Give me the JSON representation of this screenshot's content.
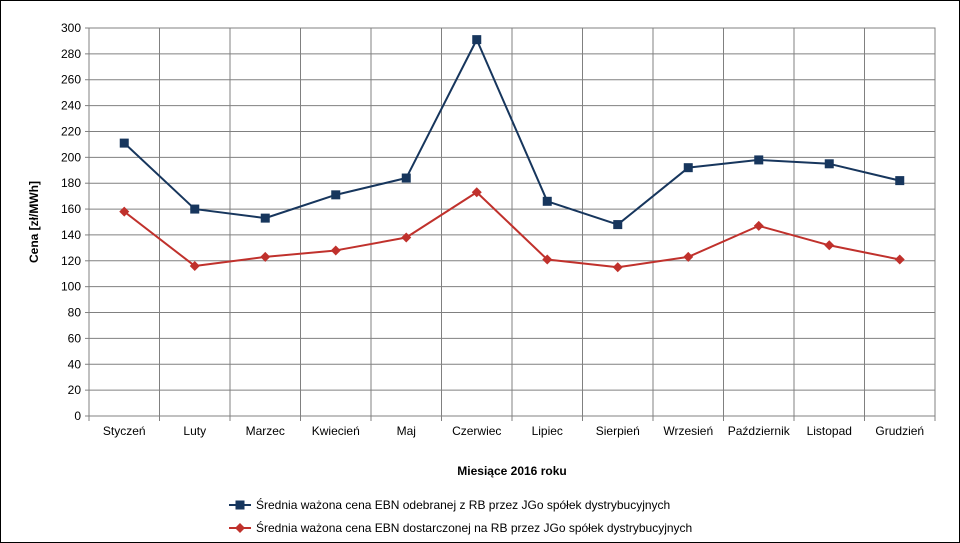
{
  "chart_data": {
    "type": "line",
    "title": "",
    "xlabel": "Miesiące 2016  roku",
    "ylabel": "Cena [zł/MWh]",
    "ylim": [
      0,
      300
    ],
    "y_ticks": [
      0,
      20,
      40,
      60,
      80,
      100,
      120,
      140,
      160,
      180,
      200,
      220,
      240,
      260,
      280,
      300
    ],
    "categories": [
      "Styczeń",
      "Luty",
      "Marzec",
      "Kwiecień",
      "Maj",
      "Czerwiec",
      "Lipiec",
      "Sierpień",
      "Wrzesień",
      "Październik",
      "Listopad",
      "Grudzień"
    ],
    "grid": true,
    "legend_position": "bottom",
    "series": [
      {
        "name": "Średnia ważona cena EBN odebranej z RB przez JGo spółek dystrybucyjnych",
        "color": "#17365D",
        "marker": "square",
        "values": [
          211,
          160,
          153,
          171,
          184,
          291,
          166,
          148,
          192,
          198,
          195,
          182
        ]
      },
      {
        "name": "Średnia ważona cena EBN dostarczonej na RB przez JGo spółek dystrybucyjnych",
        "color": "#C0312C",
        "marker": "diamond",
        "values": [
          158,
          116,
          123,
          128,
          138,
          173,
          121,
          115,
          123,
          147,
          132,
          121
        ]
      }
    ]
  }
}
